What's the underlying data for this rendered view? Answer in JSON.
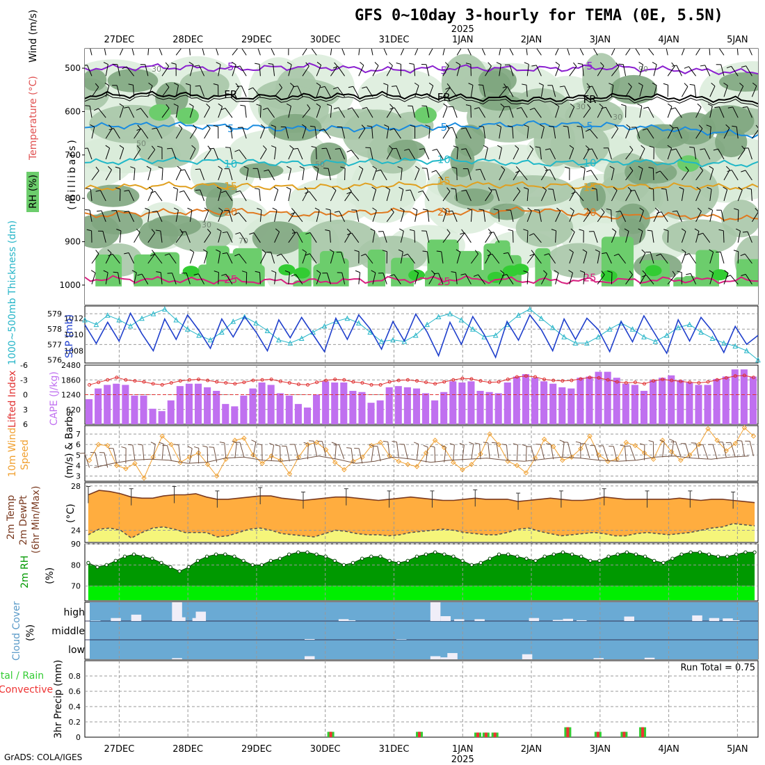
{
  "title": "GFS 0~10day 3-hourly for TEMA (0E, 5.5N)",
  "credit": "GrADS: COLA/IGES",
  "colors": {
    "rh_light": "#d8ebd8",
    "rh_mid": "#a9c7a9",
    "rh_dark": "#7fa67f",
    "rh_green": "#6ccd6c",
    "rh_bright": "#33cc33",
    "wind_barb": "#000000",
    "slp_line": "#1f3fcc",
    "thickness_line": "#26b5c8",
    "cape_bar": "#c070f0",
    "lifted_index": "#e03030",
    "wind10_speed": "#f0a030",
    "wind10_barb": "#705040",
    "temp_fill": "#ffad3f",
    "dewpt_fill": "#f5f57a",
    "temp_line": "#7a3a20",
    "rh2m_dark": "#009900",
    "rh2m_light": "#00ee00",
    "cloud_bg": "#6aaad4",
    "cloud_bar": "#f0eef8",
    "precip_total": "#33cc33",
    "precip_conv": "#ee3333"
  },
  "chart_data": {
    "type": "meteogram",
    "time_axis": {
      "top_labels": [
        "27DEC",
        "28DEC",
        "29DEC",
        "30DEC",
        "31DEC",
        "1JAN",
        "2JAN",
        "3JAN",
        "4JAN",
        "5JAN"
      ],
      "year_label": "2025",
      "bottom_labels": [
        "27DEC",
        "28DEC",
        "29DEC",
        "30DEC",
        "31DEC",
        "1JAN",
        "2JAN",
        "3JAN",
        "4JAN",
        "5JAN"
      ],
      "day_start": -0.5,
      "day_end": 9.3
    },
    "panels": [
      {
        "id": "upper_air",
        "ylabel_parts": [
          "RH (%)",
          "Temperature (°C)",
          "Wind (m/s)"
        ],
        "yunit": "(millibars)",
        "yticks": [
          "500",
          "600",
          "700",
          "800",
          "900",
          "1000"
        ],
        "ylim": [
          455,
          1045
        ],
        "isotherms": [
          {
            "label": "5",
            "color": "#8a1fcf",
            "p": [
              500,
              497,
              502,
              496,
              505,
              499,
              502,
              498,
              505,
              510
            ]
          },
          {
            "label": "FR",
            "color": "#000000",
            "p": [
              563,
              560,
              567,
              565,
              562,
              567,
              573,
              565,
              568,
              575
            ]
          },
          {
            "label": "5",
            "color": "#1a8ce0",
            "p": [
              635,
              630,
              636,
              640,
              638,
              634,
              628,
              632,
              642,
              655
            ]
          },
          {
            "label": "10",
            "color": "#20b8c8",
            "p": [
              718,
              712,
              716,
              720,
              715,
              712,
              720,
              716,
              718,
              722
            ]
          },
          {
            "label": "15",
            "color": "#e0a020",
            "p": [
              778,
              770,
              772,
              775,
              770,
              768,
              770,
              773,
              772,
              775
            ]
          },
          {
            "label": "20",
            "color": "#e07a20",
            "p": [
              840,
              832,
              830,
              838,
              830,
              833,
              826,
              842,
              840,
              848
            ]
          },
          {
            "label": "25",
            "color": "#d81f7f",
            "p": [
              985,
              988,
              990,
              992,
              988,
              986,
              990,
              990,
              988,
              990
            ]
          }
        ],
        "rh_contour_labels": [
          "30",
          "50",
          "70",
          "90"
        ]
      },
      {
        "id": "slp_thickness",
        "ylabel_left": "1000~500mb Thickness (dm)",
        "ylabel_right": "SLP (mb)",
        "yticks_left": [
          "576",
          "577",
          "578",
          "579"
        ],
        "yticks_right": [
          "1008",
          "1010",
          "1012"
        ],
        "thickness_range": [
          575.8,
          579.5
        ],
        "slp_range": [
          1006.5,
          1013.5
        ],
        "slp": [
          1011.2,
          1008.9,
          1011.5,
          1009.2,
          1012.6,
          1010.1,
          1008.0,
          1011.9,
          1009.4,
          1012.4,
          1010.5,
          1008.3,
          1011.9,
          1009.7,
          1012.2,
          1010.3,
          1008.0,
          1011.8,
          1009.6,
          1012.1,
          1010.0,
          1007.9,
          1012.0,
          1009.4,
          1012.4,
          1010.7,
          1008.2,
          1011.6,
          1009.2,
          1012.5,
          1010.3,
          1007.4,
          1011.5,
          1008.8,
          1012.2,
          1010.0,
          1007.2,
          1011.6,
          1009.3,
          1012.4,
          1010.6,
          1008.0,
          1011.9,
          1009.4,
          1012.0,
          1010.6,
          1007.9,
          1011.6,
          1009.1,
          1012.3,
          1010.0,
          1007.7,
          1011.8,
          1009.2,
          1012.1,
          1010.4,
          1007.8,
          1011.0,
          1008.8,
          1009.9
        ],
        "thickness": [
          578.6,
          578.3,
          578.9,
          578.6,
          578.2,
          578.7,
          579.0,
          579.3,
          578.6,
          578.0,
          577.6,
          577.3,
          577.8,
          578.5,
          578.8,
          578.4,
          577.9,
          577.3,
          577.1,
          577.4,
          577.8,
          578.2,
          578.5,
          578.7,
          578.4,
          577.8,
          577.2,
          577.3,
          577.2,
          577.6,
          578.3,
          578.8,
          579.0,
          578.6,
          578.0,
          577.5,
          577.6,
          578.3,
          578.9,
          579.3,
          578.7,
          578.1,
          577.5,
          577.1,
          577.1,
          577.5,
          578.0,
          578.4,
          578.0,
          577.5,
          577.2,
          577.6,
          578.1,
          578.3,
          577.8,
          577.4,
          577.1,
          576.9,
          576.6,
          576.0
        ]
      },
      {
        "id": "cape_li",
        "ylabel_left": "Lifted Index",
        "ylabel_right": "CAPE (J/kg)",
        "yticks_left": [
          "6",
          "3",
          "0",
          "-3",
          "-6"
        ],
        "yticks_right": [
          "620",
          "1240",
          "1860",
          "2480"
        ],
        "cape_ylim": [
          0,
          2480
        ],
        "li_ylim": [
          6,
          -6
        ],
        "cape": [
          1050,
          1500,
          1650,
          1700,
          1650,
          1200,
          1200,
          650,
          550,
          1000,
          1600,
          1700,
          1700,
          1550,
          1400,
          850,
          750,
          1200,
          1500,
          1750,
          1650,
          1300,
          1200,
          850,
          700,
          1250,
          1800,
          1750,
          1750,
          1400,
          1350,
          900,
          1000,
          1550,
          1600,
          1550,
          1500,
          1300,
          1000,
          1350,
          1800,
          1750,
          1800,
          1400,
          1350,
          1300,
          1750,
          2000,
          2100,
          1950,
          1800,
          1700,
          1550,
          1500,
          1950,
          2000,
          2200,
          2200,
          1950,
          1700,
          1650,
          1400,
          1850,
          1950,
          2050,
          1850,
          1750,
          1650,
          1650,
          1900,
          2000,
          2300,
          2300,
          2000
        ],
        "lifted_index": [
          -2.0,
          -2.5,
          -3.0,
          -3.5,
          -3.0,
          -2.8,
          -2.6,
          -2.2,
          -2.0,
          -2.4,
          -2.8,
          -3.0,
          -3.1,
          -2.9,
          -2.6,
          -2.4,
          -2.2,
          -2.5,
          -2.9,
          -3.0,
          -3.1,
          -2.7,
          -2.4,
          -2.1,
          -2.0,
          -2.5,
          -2.9,
          -3.1,
          -3.0,
          -2.6,
          -2.4,
          -2.0,
          -2.0,
          -2.6,
          -2.9,
          -3.0,
          -2.8,
          -2.5,
          -2.2,
          -2.6,
          -3.0,
          -3.3,
          -3.2,
          -2.8,
          -2.5,
          -2.6,
          -3.1,
          -3.6,
          -3.8,
          -3.6,
          -3.1,
          -2.9,
          -2.8,
          -2.9,
          -3.2,
          -3.5,
          -3.4,
          -3.0,
          -2.6,
          -2.4,
          -2.5,
          -2.2,
          -2.8,
          -3.1,
          -2.9,
          -2.7,
          -2.5,
          -2.4,
          -2.6,
          -3.0,
          -3.4,
          -3.8,
          -3.9,
          -3.5
        ]
      },
      {
        "id": "wind10m",
        "ylabel_left": "10m Wind Speed",
        "ylabel_right": "(m/s) & Barbs",
        "yticks": [
          "3",
          "4",
          "5",
          "6",
          "7"
        ],
        "ylim": [
          2.5,
          7.8
        ],
        "speed": [
          4.5,
          6.0,
          5.9,
          4.0,
          3.7,
          4.2,
          2.8,
          4.8,
          6.8,
          6.0,
          4.3,
          4.8,
          5.2,
          4.1,
          3.0,
          4.6,
          6.4,
          6.6,
          5.0,
          4.2,
          4.9,
          4.5,
          3.2,
          4.8,
          6.0,
          6.2,
          5.5,
          4.3,
          3.6,
          4.4,
          4.8,
          5.9,
          6.2,
          4.9,
          4.4,
          4.1,
          3.9,
          5.2,
          6.4,
          5.7,
          4.3,
          3.6,
          4.1,
          5.1,
          7.0,
          6.0,
          4.4,
          4.0,
          3.3,
          4.7,
          6.5,
          5.8,
          4.5,
          4.8,
          5.6,
          6.8,
          5.0,
          4.4,
          4.6,
          6.2,
          5.9,
          5.2,
          4.6,
          6.4,
          5.3,
          4.5,
          5.0,
          6.0,
          7.5,
          6.4,
          5.4,
          6.1,
          7.6,
          6.8
        ],
        "mean_line": [
          3.8,
          4.2,
          4.5,
          4.6,
          4.5,
          4.2,
          4.3,
          4.7,
          4.8,
          4.5,
          4.4,
          4.6,
          4.9,
          4.6,
          4.2,
          4.4,
          4.8,
          4.6,
          4.3,
          4.5,
          4.6,
          4.7,
          4.5,
          4.4,
          4.6,
          4.8,
          4.7,
          4.5,
          4.4,
          4.5,
          4.8,
          4.9,
          4.7,
          4.6,
          4.8,
          4.9
        ]
      },
      {
        "id": "temp2m",
        "ylabel_parts": [
          "2m Temp",
          "2m DewPt",
          "(6hr Min/Max)"
        ],
        "yunit": "(°C)",
        "yticks": [
          "24",
          "28"
        ],
        "ylim": [
          22.9,
          28.3
        ],
        "temp": [
          27.2,
          27.6,
          27.5,
          27.3,
          27.0,
          26.9,
          26.9,
          27.1,
          27.2,
          27.2,
          27.3,
          27.0,
          26.8,
          26.8,
          26.9,
          27.0,
          27.1,
          27.1,
          26.9,
          26.8,
          26.7,
          26.8,
          26.9,
          27.0,
          27.0,
          26.9,
          26.8,
          26.7,
          26.8,
          26.9,
          27.0,
          26.9,
          26.8,
          26.7,
          26.7,
          26.8,
          26.9,
          26.8,
          26.8,
          26.8,
          26.6,
          26.7,
          26.8,
          26.9,
          26.8,
          26.7,
          26.7,
          26.8,
          27.0,
          26.9,
          26.8,
          26.8,
          26.8,
          26.8,
          26.8,
          26.9,
          26.8,
          26.7,
          26.8,
          26.8,
          26.7,
          26.6,
          26.5
        ],
        "dewpt": [
          23.6,
          24.1,
          24.2,
          24.0,
          23.3,
          23.8,
          24.2,
          24.3,
          24.1,
          23.8,
          23.8,
          23.8,
          23.4,
          23.5,
          23.8,
          24.1,
          24.2,
          24.0,
          23.7,
          23.6,
          23.5,
          23.4,
          23.7,
          24.0,
          23.9,
          23.7,
          23.6,
          23.6,
          23.5,
          23.6,
          23.8,
          23.9,
          24.0,
          24.1,
          24.0,
          23.8,
          23.7,
          23.6,
          23.6,
          23.8,
          24.1,
          24.2,
          23.9,
          23.7,
          23.5,
          23.6,
          23.7,
          23.8,
          23.7,
          23.5,
          23.5,
          23.7,
          23.8,
          23.7,
          23.6,
          23.7,
          23.8,
          24.0,
          24.2,
          24.3,
          24.6,
          24.5,
          24.4
        ]
      },
      {
        "id": "rh2m",
        "ylabel": "2m RH",
        "yunit": "(%)",
        "yticks": [
          "70",
          "80",
          "90"
        ],
        "ylim": [
          63,
          90
        ],
        "rh": [
          81,
          79,
          80,
          82,
          84,
          85,
          84,
          83,
          81,
          79,
          77,
          79,
          82,
          84,
          85,
          85,
          84,
          82,
          80,
          80,
          82,
          83,
          85,
          86,
          86,
          85,
          84,
          82,
          80,
          81,
          83,
          84,
          84,
          82,
          81,
          82,
          84,
          85,
          86,
          85,
          84,
          82,
          80,
          81,
          83,
          85,
          85,
          84,
          83,
          82,
          84,
          85,
          86,
          85,
          84,
          82,
          82,
          84,
          85,
          86,
          85,
          84,
          82,
          81,
          83,
          85,
          86,
          86,
          85,
          84,
          84,
          85,
          86,
          86
        ]
      },
      {
        "id": "cloud",
        "ylabel": "Cloud Cover",
        "yunit": "(%)",
        "levels": [
          "high",
          "middle",
          "low"
        ],
        "high": [
          [
            0.0,
            0.1
          ],
          [
            0.6,
            0.8
          ],
          [
            1.2,
            1.7
          ],
          [
            2.4,
            5.0
          ],
          [
            3.0,
            0.8
          ],
          [
            3.1,
            2.5
          ],
          [
            2.5,
            1.0
          ],
          [
            7.3,
            0.5
          ],
          [
            7.5,
            0.2
          ],
          [
            10.0,
            5.0
          ],
          [
            10.3,
            1.3
          ],
          [
            10.7,
            0.5
          ],
          [
            11.3,
            0.5
          ],
          [
            12.9,
            0.8
          ],
          [
            13.6,
            0.3
          ],
          [
            13.9,
            0.6
          ],
          [
            14.3,
            0.2
          ],
          [
            15.7,
            1.2
          ],
          [
            17.7,
            1.5
          ],
          [
            18.2,
            0.8
          ],
          [
            18.6,
            0.7
          ],
          [
            18.8,
            0.2
          ]
        ],
        "middle": [
          [
            6.3,
            0.2
          ],
          [
            9.0,
            0.1
          ]
        ],
        "low": [
          [
            2.4,
            0.3
          ],
          [
            6.3,
            0.8
          ],
          [
            10.0,
            0.8
          ],
          [
            10.3,
            0.5
          ],
          [
            10.5,
            1.6
          ],
          [
            12.7,
            1.3
          ],
          [
            14.8,
            0.3
          ],
          [
            16.3,
            0.4
          ]
        ],
        "annotation": ""
      },
      {
        "id": "precip",
        "ylabel_left": "Total / Rain",
        "ylabel_left2": "Convective",
        "ylabel_right": "3hr Precip (mm)",
        "yticks": [
          "0",
          "0.2",
          "0.4",
          "0.6",
          "0.8"
        ],
        "ylim": [
          0,
          1.0
        ],
        "run_total_label": "Run Total = 0.75",
        "events": [
          {
            "day": 3.08,
            "total": 0.07,
            "conv": 0.07
          },
          {
            "day": 4.37,
            "total": 0.07,
            "conv": 0.07
          },
          {
            "day": 5.22,
            "total": 0.06,
            "conv": 0.06
          },
          {
            "day": 5.34,
            "total": 0.06,
            "conv": 0.06
          },
          {
            "day": 5.47,
            "total": 0.06,
            "conv": 0.06
          },
          {
            "day": 6.53,
            "total": 0.13,
            "conv": 0.13
          },
          {
            "day": 6.97,
            "total": 0.07,
            "conv": 0.07
          },
          {
            "day": 7.35,
            "total": 0.07,
            "conv": 0.07
          },
          {
            "day": 7.62,
            "total": 0.13,
            "conv": 0.13
          }
        ]
      }
    ]
  }
}
